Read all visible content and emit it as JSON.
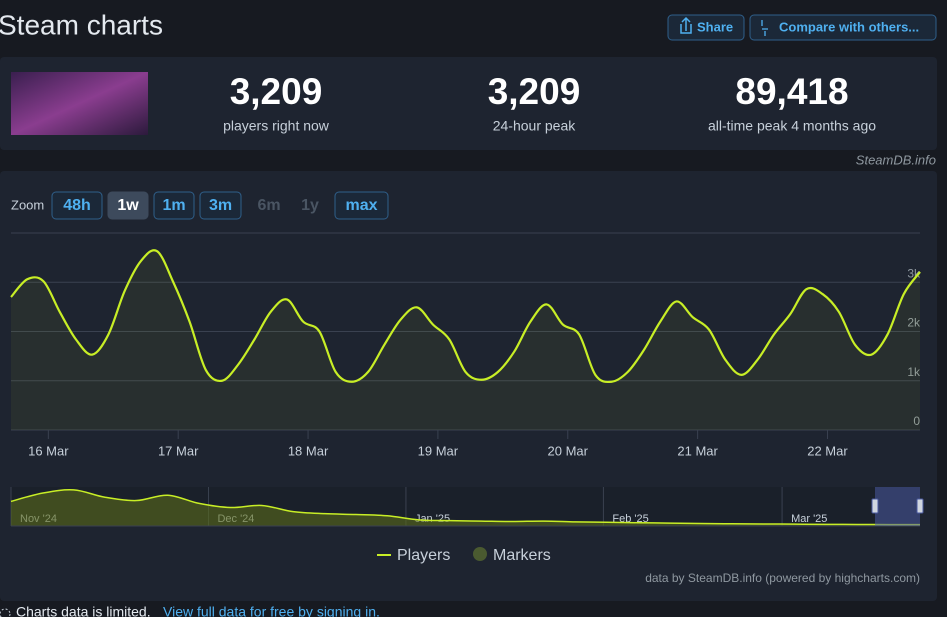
{
  "header": {
    "title": "Steam charts",
    "share": "Share",
    "compare": "Compare with others..."
  },
  "stats": [
    {
      "value": "3,209",
      "label": "players right now"
    },
    {
      "value": "3,209",
      "label": "24-hour peak"
    },
    {
      "value": "89,418",
      "label": "all-time peak 4 months ago"
    }
  ],
  "watermark": "SteamDB.info",
  "zoom": {
    "label": "Zoom",
    "options": [
      "48h",
      "1w",
      "1m",
      "3m",
      "6m",
      "1y",
      "max"
    ]
  },
  "chart_data": [
    {
      "type": "line",
      "series": [
        {
          "name": "Players",
          "color": "#c8ee26",
          "values": [
            2700,
            3060,
            3020,
            2400,
            1840,
            1530,
            1940,
            2820,
            3430,
            3630,
            3000,
            2200,
            1220,
            1000,
            1330,
            1840,
            2400,
            2650,
            2200,
            2000,
            1180,
            980,
            1180,
            1730,
            2240,
            2490,
            2140,
            1840,
            1180,
            1020,
            1180,
            1590,
            2200,
            2550,
            2140,
            1940,
            1120,
            980,
            1180,
            1630,
            2200,
            2610,
            2290,
            2040,
            1430,
            1120,
            1430,
            1940,
            2350,
            2860,
            2760,
            2400,
            1730,
            1530,
            1940,
            2760,
            3209
          ]
        }
      ],
      "xlim": [
        0,
        56
      ],
      "xticks": [
        {
          "value": 2.3,
          "label": "16 Mar"
        },
        {
          "value": 10.3,
          "label": "17 Mar"
        },
        {
          "value": 18.3,
          "label": "18 Mar"
        },
        {
          "value": 26.3,
          "label": "19 Mar"
        },
        {
          "value": 34.3,
          "label": "20 Mar"
        },
        {
          "value": 42.3,
          "label": "21 Mar"
        },
        {
          "value": 50.3,
          "label": "22 Mar"
        }
      ],
      "ylim": [
        0,
        4000
      ],
      "yticks": [
        0,
        {
          "value": 1000,
          "label": "1k"
        },
        {
          "value": 2000,
          "label": "2k"
        },
        {
          "value": 3000,
          "label": "3k"
        }
      ],
      "grid": true,
      "markers_legend": "Markers",
      "credits": "data by SteamDB.info (powered by highcharts.com)"
    },
    {
      "type": "area",
      "series": [
        {
          "name": "Players",
          "color": "#c8ee26",
          "values": [
            60000,
            80000,
            88000,
            70000,
            62000,
            75000,
            55000,
            45000,
            50000,
            35000,
            30000,
            28000,
            25000,
            15000,
            13000,
            12000,
            11000,
            12000,
            10000,
            9000,
            8000,
            7000,
            6000,
            5500,
            5000,
            4500,
            4000,
            3800,
            3500,
            3300
          ]
        }
      ],
      "xlim": [
        0,
        29
      ],
      "xticks": [
        {
          "value": 0,
          "label": "Nov '24"
        },
        {
          "value": 6.3,
          "label": "Dec '24"
        },
        {
          "value": 12.6,
          "label": "Jan '25"
        },
        {
          "value": 18.9,
          "label": "Feb '25"
        },
        {
          "value": 24.6,
          "label": "Mar '25"
        }
      ],
      "ylim": [
        0,
        95000
      ]
    }
  ],
  "notice": {
    "text": "Charts data is limited.",
    "link": "View full data for free by signing in."
  }
}
